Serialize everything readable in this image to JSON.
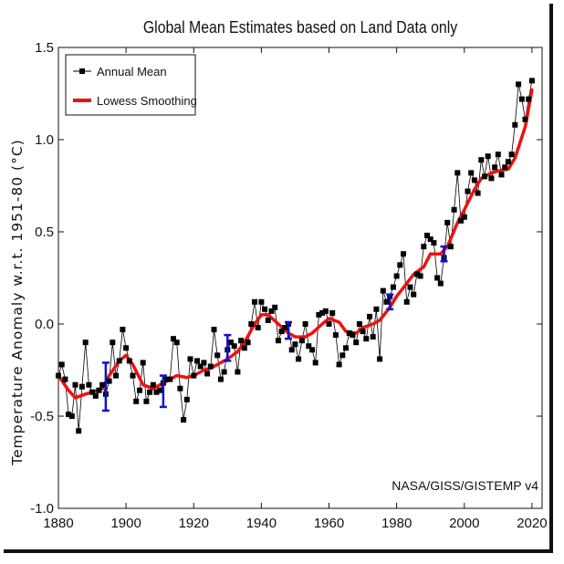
{
  "chart_data": {
    "type": "line",
    "title": "Global Mean Estimates based on Land Data only",
    "xlabel": "",
    "ylabel": "Temperature Anomaly w.r.t. 1951-80 (°C)",
    "xlim": [
      1880,
      2023
    ],
    "ylim": [
      -1.0,
      1.5
    ],
    "xticks": [
      1880,
      1900,
      1920,
      1940,
      1960,
      1980,
      2000,
      2020
    ],
    "yticks": [
      -1.0,
      -0.5,
      0.0,
      0.5,
      1.0,
      1.5
    ],
    "ytick_labels": [
      "-1.0",
      "-0.5",
      "0.0",
      "0.5",
      "1.0",
      "1.5"
    ],
    "annotation": "NASA/GISS/GISTEMP v4",
    "legend": {
      "position": "top-left",
      "entries": [
        "Annual Mean",
        "Lowess Smoothing"
      ]
    },
    "colors": {
      "annual": "#000000",
      "lowess": "#ee1111",
      "error_bars": "#1111cc"
    },
    "series": [
      {
        "name": "Annual Mean",
        "x": [
          1880,
          1881,
          1882,
          1883,
          1884,
          1885,
          1886,
          1887,
          1888,
          1889,
          1890,
          1891,
          1892,
          1893,
          1894,
          1895,
          1896,
          1897,
          1898,
          1899,
          1900,
          1901,
          1902,
          1903,
          1904,
          1905,
          1906,
          1907,
          1908,
          1909,
          1910,
          1911,
          1912,
          1913,
          1914,
          1915,
          1916,
          1917,
          1918,
          1919,
          1920,
          1921,
          1922,
          1923,
          1924,
          1925,
          1926,
          1927,
          1928,
          1929,
          1930,
          1931,
          1932,
          1933,
          1934,
          1935,
          1936,
          1937,
          1938,
          1939,
          1940,
          1941,
          1942,
          1943,
          1944,
          1945,
          1946,
          1947,
          1948,
          1949,
          1950,
          1951,
          1952,
          1953,
          1954,
          1955,
          1956,
          1957,
          1958,
          1959,
          1960,
          1961,
          1962,
          1963,
          1964,
          1965,
          1966,
          1967,
          1968,
          1969,
          1970,
          1971,
          1972,
          1973,
          1974,
          1975,
          1976,
          1977,
          1978,
          1979,
          1980,
          1981,
          1982,
          1983,
          1984,
          1985,
          1986,
          1987,
          1988,
          1989,
          1990,
          1991,
          1992,
          1993,
          1994,
          1995,
          1996,
          1997,
          1998,
          1999,
          2000,
          2001,
          2002,
          2003,
          2004,
          2005,
          2006,
          2007,
          2008,
          2009,
          2010,
          2011,
          2012,
          2013,
          2014,
          2015,
          2016,
          2017,
          2018,
          2019,
          2020
        ],
        "values": [
          -0.28,
          -0.22,
          -0.3,
          -0.49,
          -0.5,
          -0.33,
          -0.58,
          -0.34,
          -0.1,
          -0.33,
          -0.37,
          -0.39,
          -0.36,
          -0.33,
          -0.38,
          -0.31,
          -0.1,
          -0.28,
          -0.2,
          -0.03,
          -0.13,
          -0.2,
          -0.28,
          -0.42,
          -0.36,
          -0.21,
          -0.42,
          -0.37,
          -0.33,
          -0.37,
          -0.36,
          -0.32,
          -0.3,
          -0.3,
          -0.08,
          -0.1,
          -0.35,
          -0.52,
          -0.41,
          -0.19,
          -0.28,
          -0.2,
          -0.23,
          -0.21,
          -0.27,
          -0.23,
          -0.03,
          -0.17,
          -0.3,
          -0.26,
          -0.14,
          -0.1,
          -0.12,
          -0.26,
          -0.09,
          -0.13,
          -0.1,
          0.0,
          0.12,
          -0.02,
          0.12,
          0.08,
          0.02,
          0.07,
          0.09,
          -0.09,
          -0.04,
          -0.02,
          0.0,
          -0.14,
          -0.11,
          -0.19,
          -0.09,
          0.0,
          -0.12,
          -0.14,
          -0.21,
          0.05,
          0.06,
          0.07,
          0.0,
          0.06,
          -0.06,
          -0.22,
          -0.17,
          -0.13,
          -0.05,
          -0.06,
          -0.1,
          0.0,
          -0.04,
          -0.08,
          0.04,
          -0.07,
          0.08,
          -0.19,
          0.18,
          0.12,
          0.15,
          0.2,
          0.26,
          0.32,
          0.38,
          0.12,
          0.2,
          0.16,
          0.27,
          0.26,
          0.42,
          0.48,
          0.46,
          0.44,
          0.25,
          0.22,
          0.36,
          0.55,
          0.42,
          0.62,
          0.82,
          0.56,
          0.58,
          0.72,
          0.82,
          0.78,
          0.71,
          0.89,
          0.8,
          0.91,
          0.79,
          0.85,
          0.92,
          0.81,
          0.85,
          0.88,
          0.92,
          1.08,
          1.3,
          1.22,
          1.11,
          1.22,
          1.32
        ]
      },
      {
        "name": "Lowess Smoothing",
        "x": [
          1880,
          1883,
          1885,
          1888,
          1890,
          1893,
          1895,
          1898,
          1900,
          1902,
          1905,
          1908,
          1910,
          1913,
          1915,
          1918,
          1920,
          1923,
          1925,
          1928,
          1930,
          1933,
          1935,
          1938,
          1940,
          1942,
          1945,
          1948,
          1950,
          1953,
          1955,
          1958,
          1960,
          1963,
          1965,
          1968,
          1970,
          1973,
          1975,
          1978,
          1980,
          1983,
          1985,
          1988,
          1990,
          1993,
          1995,
          1998,
          2000,
          2003,
          2005,
          2008,
          2010,
          2013,
          2015,
          2018,
          2020
        ],
        "values": [
          -0.28,
          -0.36,
          -0.4,
          -0.38,
          -0.37,
          -0.35,
          -0.28,
          -0.2,
          -0.17,
          -0.22,
          -0.33,
          -0.35,
          -0.33,
          -0.3,
          -0.28,
          -0.29,
          -0.28,
          -0.25,
          -0.24,
          -0.21,
          -0.19,
          -0.15,
          -0.1,
          0.0,
          0.05,
          0.05,
          0.0,
          -0.05,
          -0.07,
          -0.07,
          -0.05,
          0.0,
          0.03,
          0.01,
          -0.04,
          -0.05,
          -0.02,
          0.0,
          0.02,
          0.09,
          0.15,
          0.22,
          0.27,
          0.31,
          0.38,
          0.38,
          0.42,
          0.55,
          0.62,
          0.73,
          0.79,
          0.82,
          0.83,
          0.84,
          0.9,
          1.07,
          1.27
        ]
      }
    ],
    "error_bars": [
      {
        "x": 1894,
        "low": -0.47,
        "high": -0.21
      },
      {
        "x": 1911,
        "low": -0.45,
        "high": -0.28
      },
      {
        "x": 1930,
        "low": -0.2,
        "high": -0.06
      },
      {
        "x": 1948,
        "low": -0.08,
        "high": 0.01
      },
      {
        "x": 1978,
        "low": 0.08,
        "high": 0.16
      },
      {
        "x": 1994,
        "low": 0.34,
        "high": 0.42
      }
    ]
  }
}
